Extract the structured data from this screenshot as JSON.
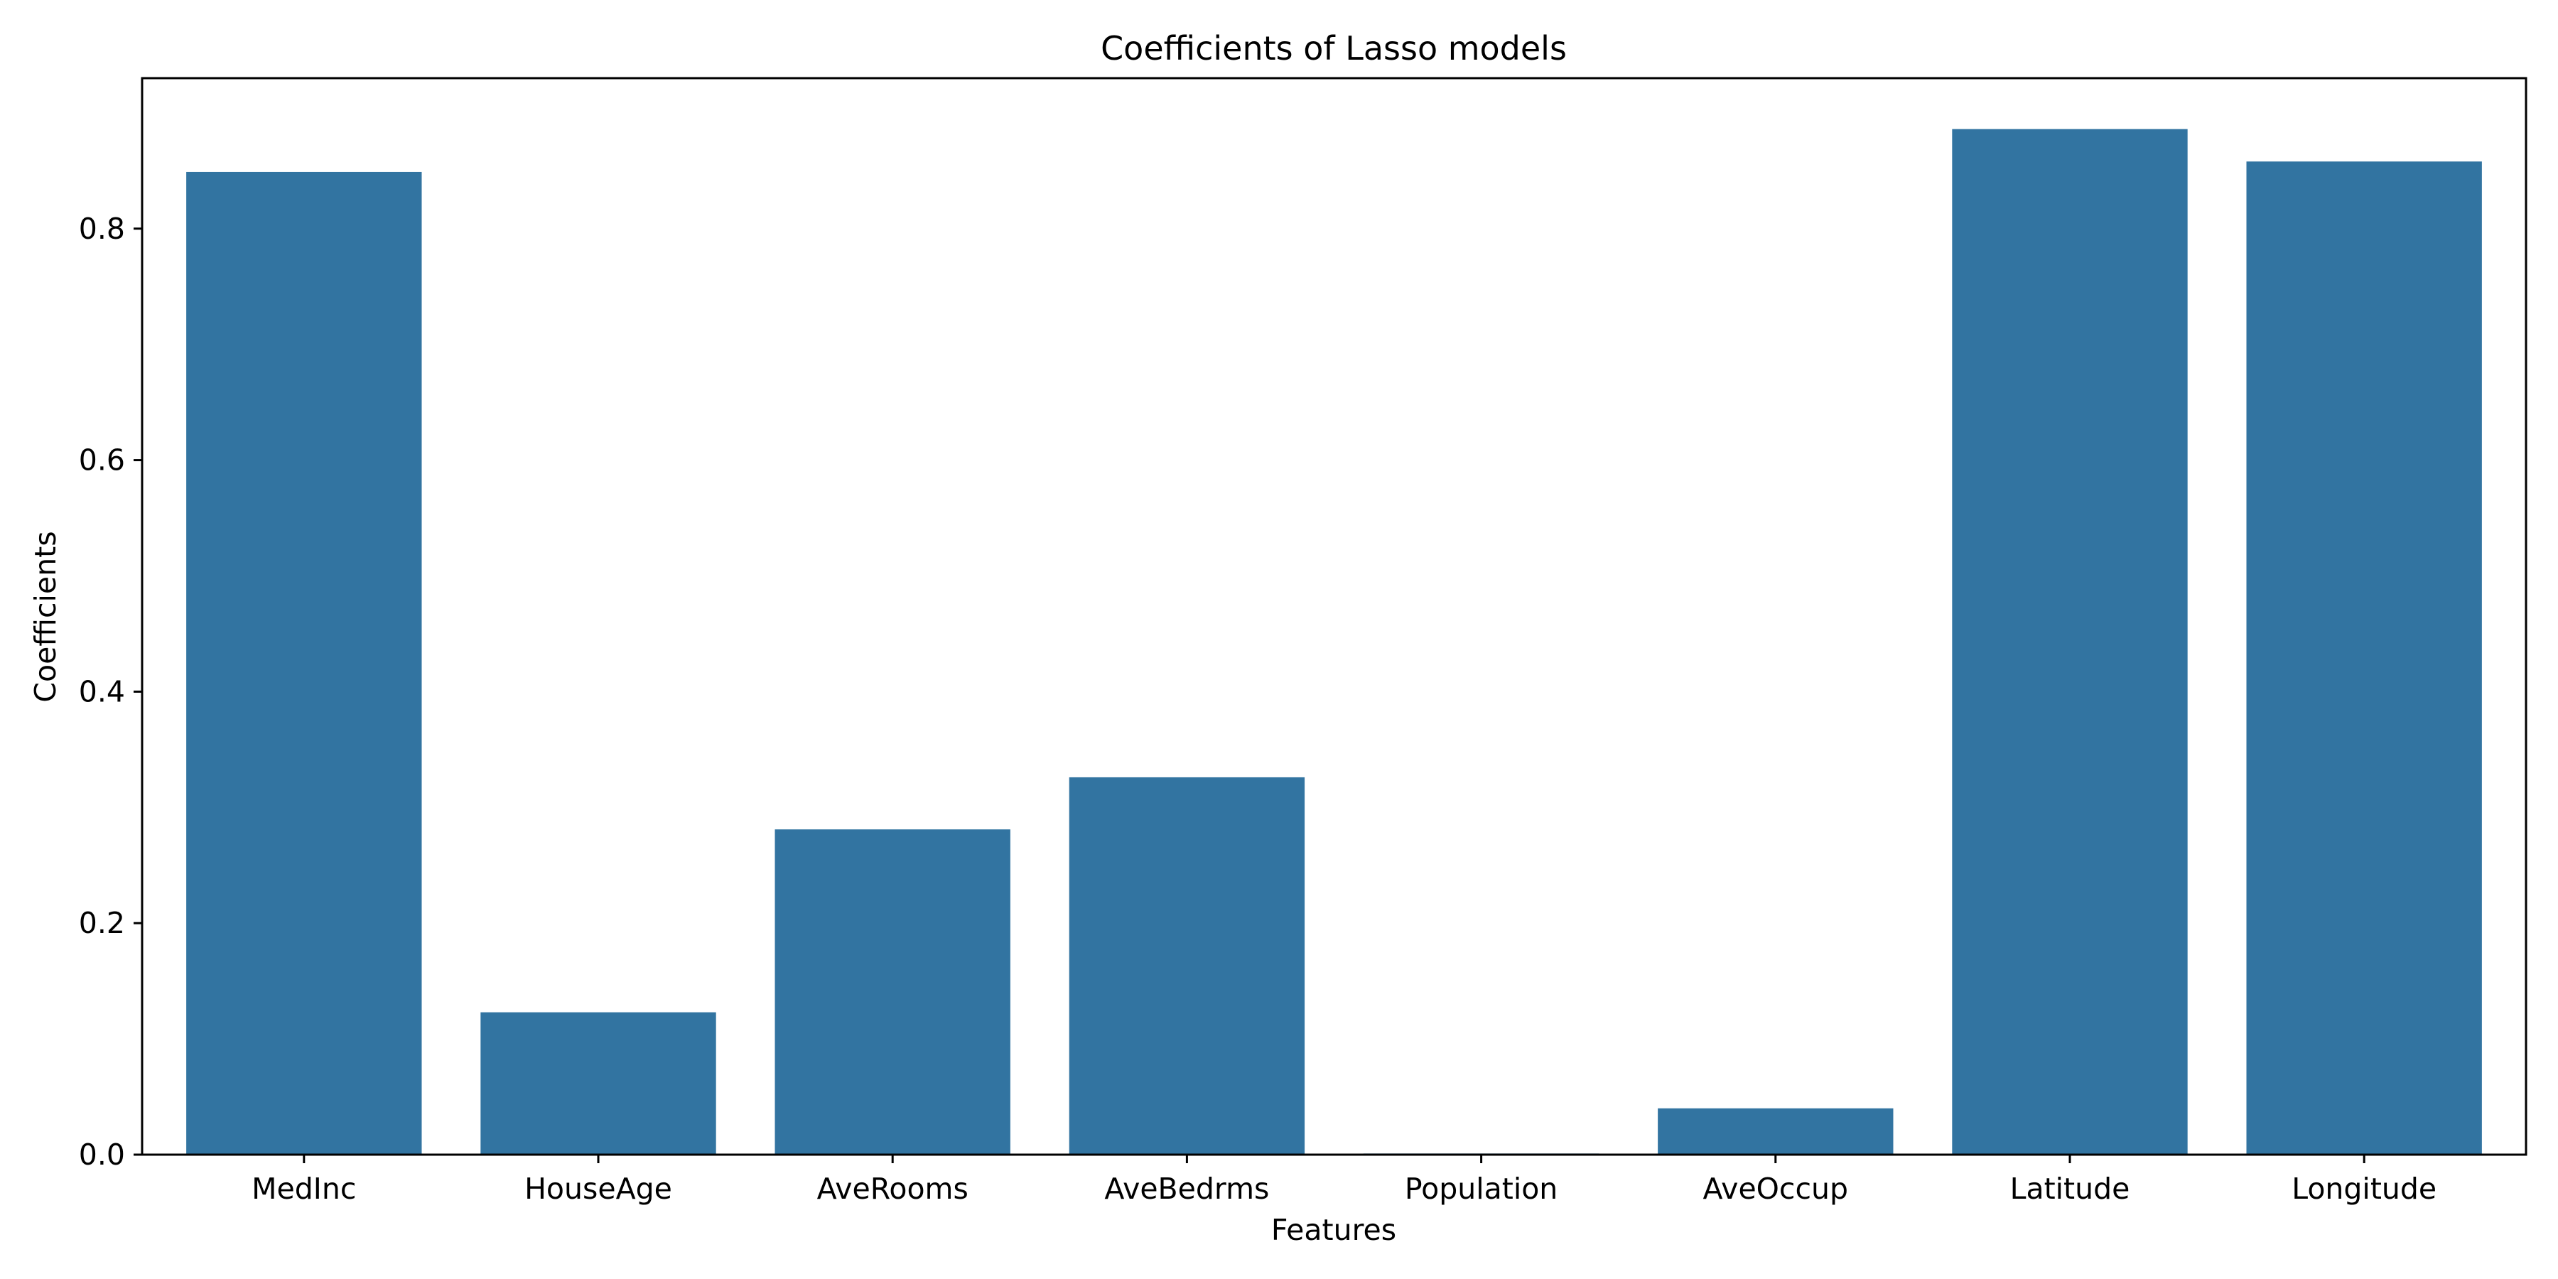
{
  "chart_data": {
    "type": "bar",
    "title": "Coefficients of Lasso models",
    "xlabel": "Features",
    "ylabel": "Coefficients",
    "categories": [
      "MedInc",
      "HouseAge",
      "AveRooms",
      "AveBedrms",
      "Population",
      "AveOccup",
      "Latitude",
      "Longitude"
    ],
    "values": [
      0.849,
      0.123,
      0.281,
      0.326,
      0.001,
      0.04,
      0.886,
      0.858
    ],
    "ylim": [
      0.0,
      0.93
    ],
    "yticks": [
      0.0,
      0.2,
      0.4,
      0.6,
      0.8
    ],
    "ytick_labels": [
      "0.0",
      "0.2",
      "0.4",
      "0.6",
      "0.8"
    ],
    "bar_color": "#3274a1",
    "grid": false,
    "legend": "none"
  }
}
